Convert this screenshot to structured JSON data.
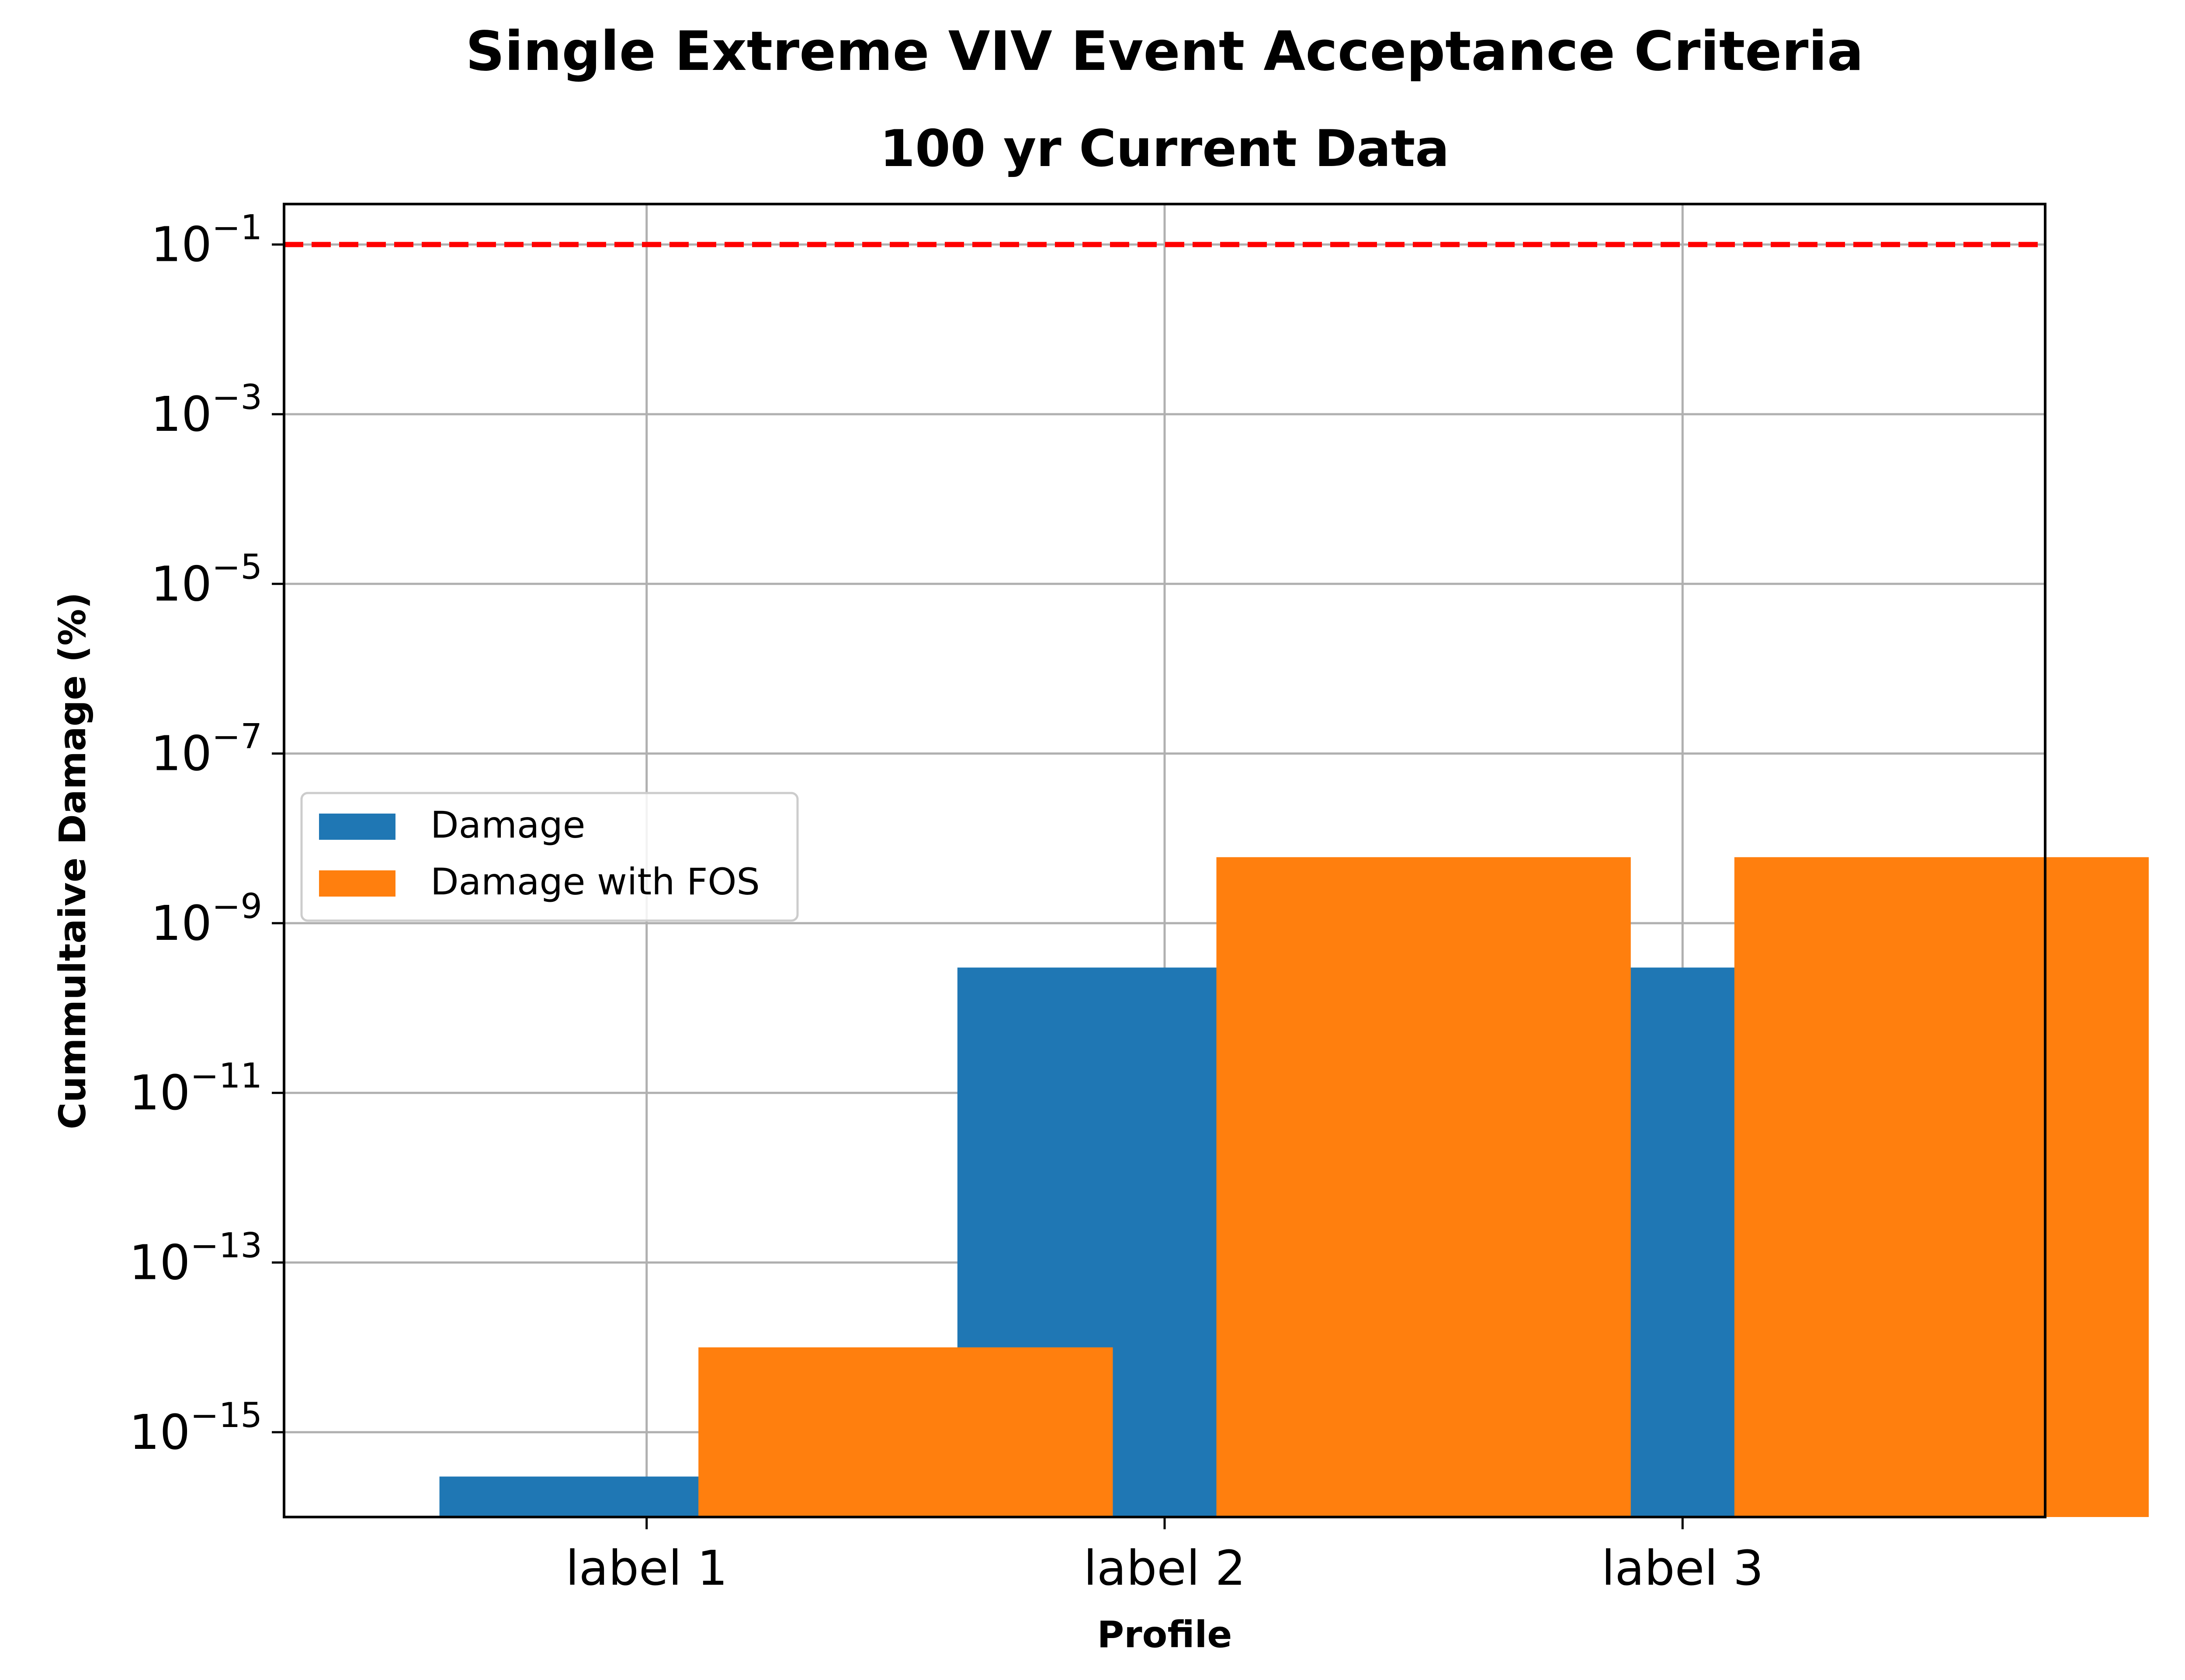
{
  "chart_data": {
    "type": "bar",
    "title": "Single Extreme VIV Event Acceptance Criteria",
    "subtitle": "100 yr Current Data",
    "xlabel": "Profile",
    "ylabel": "Cummultaive Damage (%)",
    "yscale": "log",
    "ylim": [
      1e-16,
      0.3
    ],
    "categories": [
      "label 1",
      "label 2",
      "label 3"
    ],
    "series": [
      {
        "name": "Damage",
        "values": [
          3e-16,
          3e-10,
          3e-10
        ],
        "color": "#1f77b4"
      },
      {
        "name": "Damage with FOS",
        "values": [
          1e-14,
          6e-09,
          6e-09
        ],
        "color": "#ff7f0e"
      }
    ],
    "y_tick_labels": [
      {
        "exponent": -1,
        "value": 0.1
      },
      {
        "exponent": -3,
        "value": 0.001
      },
      {
        "exponent": -5,
        "value": 1e-05
      },
      {
        "exponent": -7,
        "value": 1e-07
      },
      {
        "exponent": -9,
        "value": 1e-09
      },
      {
        "exponent": -11,
        "value": 1e-11
      },
      {
        "exponent": -13,
        "value": 1e-13
      },
      {
        "exponent": -15,
        "value": 1e-15
      }
    ],
    "reference_line": {
      "value": 0.1,
      "color": "#ff0000",
      "style": "dashed"
    },
    "grid": true,
    "legend_position": "center-left"
  }
}
